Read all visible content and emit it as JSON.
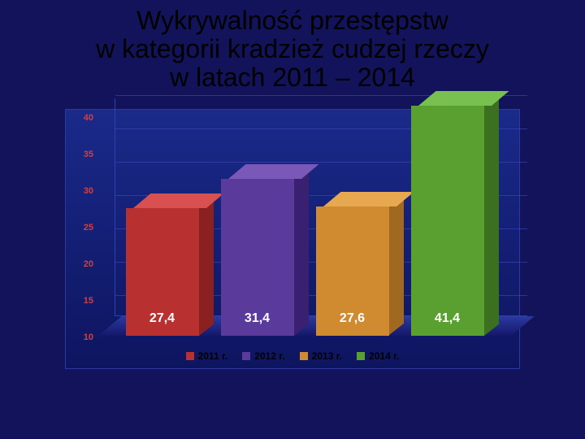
{
  "title_line1": "Wykrywalność przestępstw",
  "title_line2": "w kategorii kradzież cudzej rzeczy",
  "title_line3": "w latach 2011 – 2014",
  "chart": {
    "type": "bar",
    "ylim": [
      10,
      40
    ],
    "ytick_step": 5,
    "yticks": [
      10,
      15,
      20,
      25,
      30,
      35,
      40
    ],
    "ytick_color": "#d04040",
    "background_gradient": [
      "#1a2a8a",
      "#0e1560"
    ],
    "grid_color": "#3a4ac0",
    "categories": [
      "2011 r.",
      "2012 r.",
      "2013 r.",
      "2014 r."
    ],
    "values": [
      27.4,
      31.4,
      27.6,
      41.4
    ],
    "value_labels": [
      "27,4",
      "31,4",
      "27,6",
      "41,4"
    ],
    "bar_colors": [
      "#b93030",
      "#5a3a9a",
      "#d08a30",
      "#5aa030"
    ],
    "bar_top_colors": [
      "#d85050",
      "#7a58b8",
      "#e8a850",
      "#78c050"
    ],
    "bar_side_colors": [
      "#8a2020",
      "#3a2070",
      "#a06820",
      "#3a7020"
    ],
    "label_color": "#ffffff",
    "label_fontsize": 16,
    "legend_text_color": "#000000"
  }
}
